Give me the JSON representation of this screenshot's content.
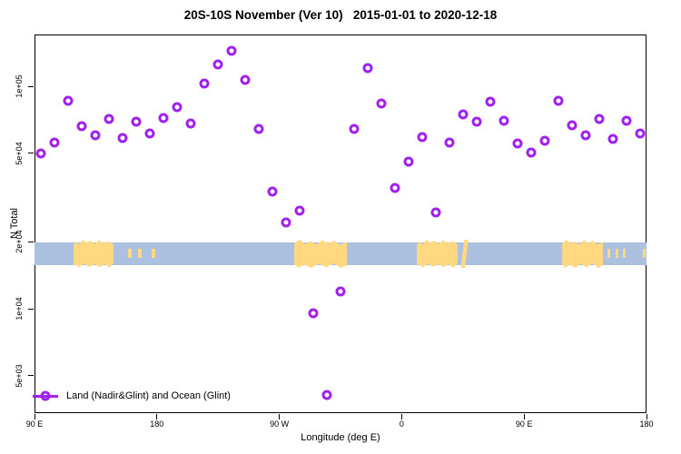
{
  "title": "20S-10S November (Ver 10)   2015-01-01 to 2020-12-18",
  "axes": {
    "x_label": "Longitude (deg E)",
    "y_label": "N Total",
    "x_ticks": [
      {
        "lon": 90,
        "label": "90 E"
      },
      {
        "lon": 180,
        "label": "180"
      },
      {
        "lon": 270,
        "label": "90 W"
      },
      {
        "lon": 360,
        "label": "0"
      },
      {
        "lon": 450,
        "label": "90 E"
      },
      {
        "lon": 540,
        "label": "180"
      }
    ],
    "y_ticks": [
      {
        "value": 100000,
        "label": "1e+05"
      },
      {
        "value": 50000,
        "label": "5e+04"
      },
      {
        "value": 20000,
        "label": "2e+04"
      },
      {
        "value": 10000,
        "label": "1e+04"
      },
      {
        "value": 5000,
        "label": "5e+03"
      }
    ]
  },
  "legend": {
    "label": "Land (Nadir&Glint) and Ocean (Glint)"
  },
  "colors": {
    "marker": "#A020F0",
    "ocean": "#ACC0DF",
    "land": "#FFD880",
    "axis": "#000000"
  },
  "map_band": {
    "description": "20S-10S latitude strip map: blue ocean, yellow land",
    "top_value": 19900,
    "bottom_value": 15700,
    "land_segments": [
      {
        "start": 118.5,
        "end": 148,
        "shape": "jag1"
      },
      {
        "start": 158.8,
        "end": 161.4,
        "shape": "dot"
      },
      {
        "start": 166.1,
        "end": 168.8,
        "shape": "dot"
      },
      {
        "start": 176.1,
        "end": 178.8,
        "shape": "dot"
      },
      {
        "start": 281,
        "end": 320,
        "shape": "jag2"
      },
      {
        "start": 371,
        "end": 401,
        "shape": "jag1"
      },
      {
        "start": 403.5,
        "end": 409,
        "shape": "sliver"
      },
      {
        "start": 478,
        "end": 508,
        "shape": "jag2"
      },
      {
        "start": 511.3,
        "end": 513.3,
        "shape": "dot"
      },
      {
        "start": 517.3,
        "end": 519.3,
        "shape": "dot"
      },
      {
        "start": 522.7,
        "end": 524.7,
        "shape": "dot"
      },
      {
        "start": 537.4,
        "end": 539.4,
        "shape": "dot"
      }
    ]
  },
  "chart_data": {
    "type": "scatter",
    "title": "20S-10S November (Ver 10)   2015-01-01 to 2020-12-18",
    "xlabel": "Longitude (deg E)",
    "ylabel": "N Total",
    "x_convention": "degrees east running continuously left-to-right from 90E (values above 180 wrap into the western hemisphere)",
    "xlim": [
      90,
      540
    ],
    "ylim_log10": [
      3.53,
      5.23
    ],
    "y_scale": "log",
    "grid": false,
    "legend_position": "bottom-left",
    "series": [
      {
        "name": "Land (Nadir&Glint) and Ocean (Glint)",
        "marker": "open-circle",
        "x": [
          95,
          105,
          115,
          125,
          135,
          145,
          155,
          165,
          175,
          185,
          195,
          205,
          215,
          225,
          235,
          245,
          255,
          265,
          275,
          285,
          295,
          305,
          315,
          325,
          335,
          345,
          355,
          365,
          375,
          385,
          395,
          405,
          415,
          425,
          435,
          445,
          455,
          465,
          475,
          485,
          495,
          505,
          515,
          525,
          535
        ],
        "y": [
          50000,
          56000,
          86000,
          66000,
          60000,
          71000,
          58500,
          69000,
          61500,
          72000,
          80500,
          68000,
          103000,
          125000,
          144000,
          107000,
          64000,
          33500,
          24500,
          27500,
          9500,
          4100,
          12000,
          64000,
          121000,
          84000,
          35000,
          46000,
          59000,
          27000,
          56000,
          75000,
          69000,
          85000,
          70000,
          55500,
          50500,
          57000,
          86000,
          67000,
          60000,
          71000,
          58000,
          70000,
          61500
        ]
      }
    ]
  }
}
